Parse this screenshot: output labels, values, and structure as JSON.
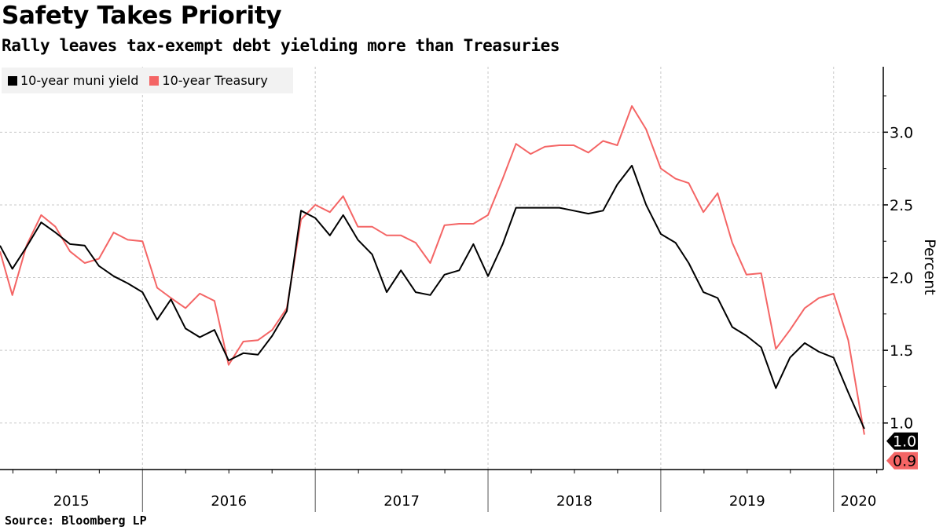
{
  "header": {
    "title": "Safety Takes Priority",
    "subtitle": "Rally leaves tax-exempt debt yielding more than Treasuries"
  },
  "footer": {
    "source": "Source:  Bloomberg LP"
  },
  "chart_data": {
    "type": "line",
    "title": "Safety Takes Priority",
    "subtitle": "Rally leaves tax-exempt debt yielding more than Treasuries",
    "xlabel": "",
    "ylabel": "Percent",
    "y_axis_side": "right",
    "ylim": [
      0.68,
      3.45
    ],
    "xlim": [
      "2015-03-06",
      "2020-04-15"
    ],
    "y_ticks": [
      1.0,
      1.5,
      2.0,
      2.5,
      3.0
    ],
    "y_tick_labels": [
      "1.0",
      "1.5",
      "2.0",
      "2.5",
      "3.0"
    ],
    "x_tick_labels": [
      "2015",
      "2016",
      "2017",
      "2018",
      "2019",
      "2020"
    ],
    "grid": true,
    "legend": "top-left",
    "dates": [
      "2015-03-06",
      "2015-04-01",
      "2015-05-01",
      "2015-06-01",
      "2015-07-01",
      "2015-08-01",
      "2015-09-01",
      "2015-10-01",
      "2015-11-01",
      "2015-12-01",
      "2016-01-01",
      "2016-02-01",
      "2016-03-01",
      "2016-04-01",
      "2016-05-01",
      "2016-06-01",
      "2016-07-01",
      "2016-08-01",
      "2016-09-01",
      "2016-10-01",
      "2016-11-01",
      "2016-12-01",
      "2017-01-01",
      "2017-02-01",
      "2017-03-01",
      "2017-04-01",
      "2017-05-01",
      "2017-06-01",
      "2017-07-01",
      "2017-08-01",
      "2017-09-01",
      "2017-10-01",
      "2017-11-01",
      "2017-12-01",
      "2018-01-01",
      "2018-02-01",
      "2018-03-01",
      "2018-04-01",
      "2018-05-01",
      "2018-06-01",
      "2018-07-01",
      "2018-08-01",
      "2018-09-01",
      "2018-10-01",
      "2018-11-01",
      "2018-12-01",
      "2019-01-01",
      "2019-02-01",
      "2019-03-01",
      "2019-04-01",
      "2019-05-01",
      "2019-06-01",
      "2019-07-01",
      "2019-08-01",
      "2019-09-01",
      "2019-10-01",
      "2019-11-01",
      "2019-12-01",
      "2020-01-01",
      "2020-02-01",
      "2020-03-06"
    ],
    "series": [
      {
        "name": "10-year muni yield",
        "color": "#000000",
        "end_label": "1.0",
        "values": [
          2.22,
          2.06,
          2.21,
          2.38,
          2.31,
          2.23,
          2.22,
          2.08,
          2.01,
          1.96,
          1.9,
          1.71,
          1.85,
          1.65,
          1.59,
          1.64,
          1.43,
          1.48,
          1.47,
          1.6,
          1.77,
          2.46,
          2.41,
          2.29,
          2.43,
          2.26,
          2.16,
          1.9,
          2.05,
          1.9,
          1.88,
          2.02,
          2.05,
          2.23,
          2.01,
          2.23,
          2.48,
          2.48,
          2.48,
          2.48,
          2.46,
          2.44,
          2.46,
          2.64,
          2.77,
          2.5,
          2.3,
          2.24,
          2.1,
          1.9,
          1.86,
          1.66,
          1.6,
          1.52,
          1.24,
          1.45,
          1.55,
          1.49,
          1.45,
          1.21,
          0.96
        ]
      },
      {
        "name": "10-year Treasury",
        "color": "#f46565",
        "end_label": "0.9",
        "values": [
          2.18,
          1.88,
          2.22,
          2.43,
          2.35,
          2.18,
          2.1,
          2.13,
          2.31,
          2.26,
          2.25,
          1.93,
          1.86,
          1.79,
          1.89,
          1.84,
          1.4,
          1.56,
          1.57,
          1.64,
          1.79,
          2.4,
          2.5,
          2.45,
          2.56,
          2.35,
          2.35,
          2.29,
          2.29,
          2.24,
          2.1,
          2.36,
          2.37,
          2.37,
          2.43,
          2.68,
          2.92,
          2.85,
          2.9,
          2.91,
          2.91,
          2.86,
          2.94,
          2.91,
          3.18,
          3.02,
          2.75,
          2.68,
          2.65,
          2.45,
          2.58,
          2.24,
          2.02,
          2.03,
          1.51,
          1.64,
          1.79,
          1.86,
          1.89,
          1.57,
          0.92
        ]
      }
    ]
  }
}
